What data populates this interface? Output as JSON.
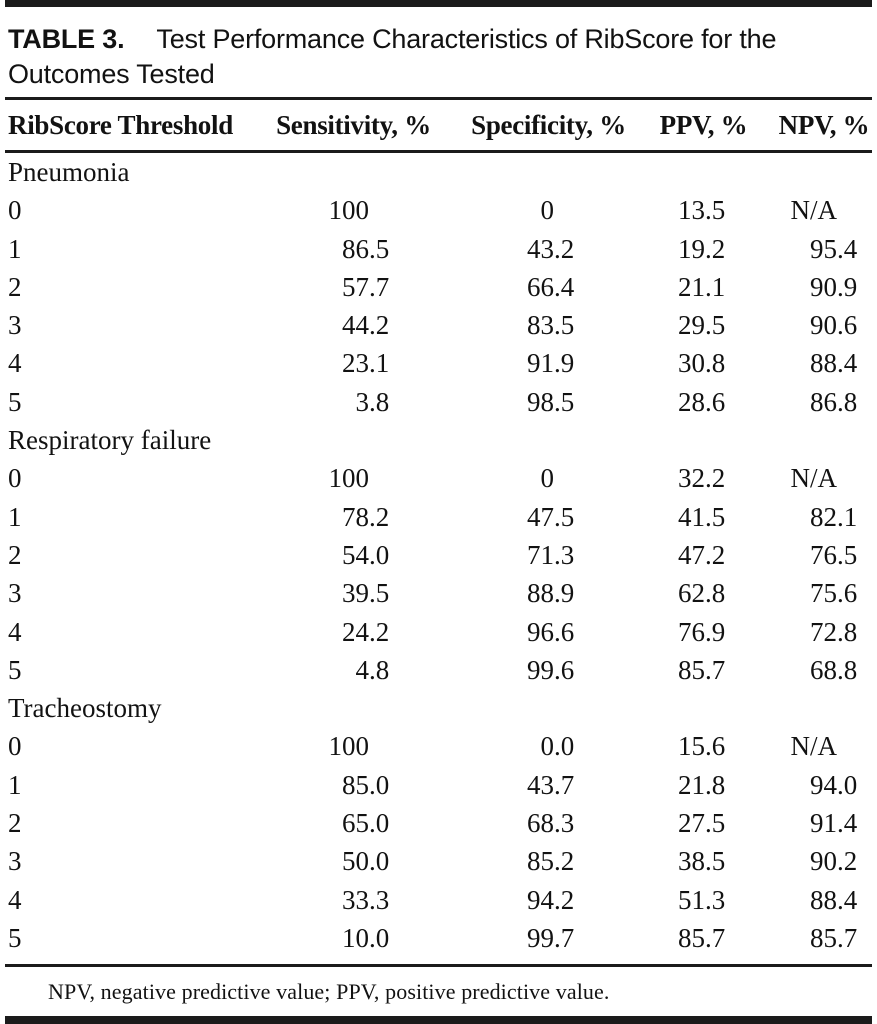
{
  "title": {
    "label": "TABLE 3.",
    "line1": "Test Performance Characteristics of RibScore for the",
    "line2": "Outcomes Tested"
  },
  "table": {
    "columns": [
      "RibScore Threshold",
      "Sensitivity, %",
      "Specificity, %",
      "PPV, %",
      "NPV, %"
    ],
    "sections": [
      {
        "name": "Pneumonia",
        "rows": [
          [
            "0",
            "100",
            "0",
            "13.5",
            "N/A"
          ],
          [
            "1",
            "86.5",
            "43.2",
            "19.2",
            "95.4"
          ],
          [
            "2",
            "57.7",
            "66.4",
            "21.1",
            "90.9"
          ],
          [
            "3",
            "44.2",
            "83.5",
            "29.5",
            "90.6"
          ],
          [
            "4",
            "23.1",
            "91.9",
            "30.8",
            "88.4"
          ],
          [
            "5",
            "3.8",
            "98.5",
            "28.6",
            "86.8"
          ]
        ]
      },
      {
        "name": "Respiratory failure",
        "rows": [
          [
            "0",
            "100",
            "0",
            "32.2",
            "N/A"
          ],
          [
            "1",
            "78.2",
            "47.5",
            "41.5",
            "82.1"
          ],
          [
            "2",
            "54.0",
            "71.3",
            "47.2",
            "76.5"
          ],
          [
            "3",
            "39.5",
            "88.9",
            "62.8",
            "75.6"
          ],
          [
            "4",
            "24.2",
            "96.6",
            "76.9",
            "72.8"
          ],
          [
            "5",
            "4.8",
            "99.6",
            "85.7",
            "68.8"
          ]
        ]
      },
      {
        "name": "Tracheostomy",
        "rows": [
          [
            "0",
            "100",
            "0.0",
            "15.6",
            "N/A"
          ],
          [
            "1",
            "85.0",
            "43.7",
            "21.8",
            "94.0"
          ],
          [
            "2",
            "65.0",
            "68.3",
            "27.5",
            "91.4"
          ],
          [
            "3",
            "50.0",
            "85.2",
            "38.5",
            "90.2"
          ],
          [
            "4",
            "33.3",
            "94.2",
            "51.3",
            "88.4"
          ],
          [
            "5",
            "10.0",
            "99.7",
            "85.7",
            "85.7"
          ]
        ]
      }
    ]
  },
  "footnote": "NPV, negative predictive value; PPV, positive predictive value."
}
